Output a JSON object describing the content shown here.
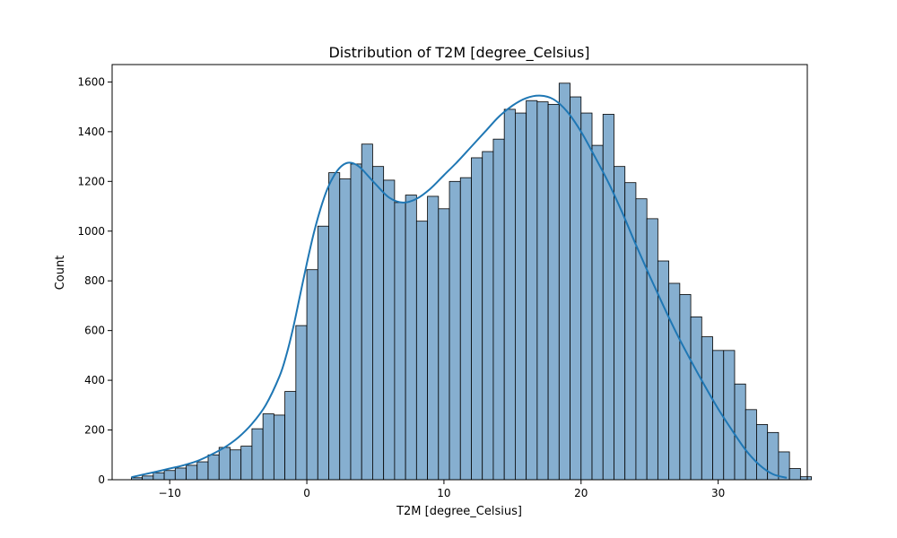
{
  "chart_data": {
    "type": "bar",
    "title": "Distribution of T2M [degree_Celsius]",
    "xlabel": "T2M [degree_Celsius]",
    "ylabel": "Count",
    "xlim": [
      -14.2,
      36.5
    ],
    "ylim": [
      0,
      1670
    ],
    "grid": false,
    "legend": "none",
    "x_ticks": [
      -10,
      0,
      10,
      20,
      30
    ],
    "x_tick_labels": [
      "−10",
      "0",
      "10",
      "20",
      "30"
    ],
    "y_ticks": [
      0,
      200,
      400,
      600,
      800,
      1000,
      1200,
      1400,
      1600
    ],
    "y_tick_labels": [
      "0",
      "200",
      "400",
      "600",
      "800",
      "1000",
      "1200",
      "1400",
      "1600"
    ],
    "bins": {
      "start": -12.8,
      "width": 0.8,
      "counts": [
        8,
        15,
        28,
        37,
        47,
        58,
        72,
        100,
        130,
        120,
        135,
        205,
        265,
        260,
        355,
        620,
        845,
        1020,
        1235,
        1210,
        1270,
        1350,
        1260,
        1205,
        1115,
        1145,
        1040,
        1140,
        1090,
        1200,
        1215,
        1295,
        1320,
        1370,
        1490,
        1475,
        1525,
        1520,
        1510,
        1595,
        1540,
        1475,
        1345,
        1470,
        1260,
        1195,
        1130,
        1050,
        880,
        790,
        745,
        655,
        575,
        520,
        520,
        385,
        282,
        222,
        190,
        112,
        45,
        12
      ]
    },
    "kde": {
      "x": [
        -12.8,
        -12,
        -11,
        -10,
        -9,
        -8,
        -7,
        -6,
        -5,
        -4,
        -3,
        -2,
        -1.5,
        -1,
        -0.5,
        0,
        0.5,
        1,
        1.5,
        2,
        2.5,
        3,
        3.5,
        4,
        5,
        6,
        7,
        8,
        9,
        10,
        11,
        12,
        13,
        14,
        15,
        16,
        17,
        18,
        19,
        20,
        21,
        22,
        23,
        24,
        25,
        26,
        27,
        28,
        29,
        30,
        31,
        32,
        33,
        34,
        35
      ],
      "y": [
        10,
        20,
        32,
        45,
        58,
        75,
        100,
        130,
        170,
        225,
        300,
        415,
        500,
        610,
        740,
        870,
        990,
        1090,
        1170,
        1225,
        1260,
        1275,
        1270,
        1250,
        1190,
        1135,
        1115,
        1130,
        1170,
        1225,
        1280,
        1340,
        1400,
        1460,
        1505,
        1535,
        1545,
        1530,
        1480,
        1400,
        1300,
        1195,
        1075,
        945,
        820,
        700,
        585,
        480,
        380,
        285,
        200,
        120,
        60,
        22,
        8
      ]
    },
    "colors": {
      "bar_fill": "#86afd0",
      "bar_edge": "#000000",
      "kde_line": "#1f77b4"
    }
  }
}
